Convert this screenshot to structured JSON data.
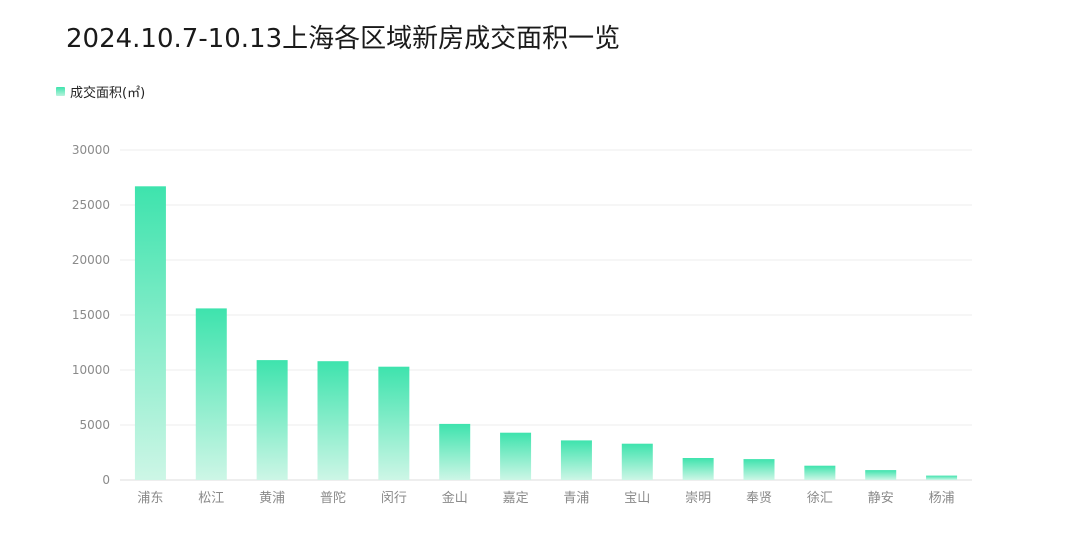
{
  "title": "2024.10.7-10.13上海各区域新房成交面积一览",
  "legend": {
    "label": "成交面积(㎡)"
  },
  "colors": {
    "bar_top": "#3ee3ad",
    "bar_bottom": "#cdf6e6",
    "grid": "#ececec",
    "axis_text": "#8a8a8a"
  },
  "chart_data": {
    "type": "bar",
    "title": "2024.10.7-10.13上海各区域新房成交面积一览",
    "xlabel": "",
    "ylabel": "",
    "ylim": [
      0,
      30000
    ],
    "yticks": [
      0,
      5000,
      10000,
      15000,
      20000,
      25000,
      30000
    ],
    "grid": true,
    "legend_position": "top-left",
    "categories": [
      "浦东",
      "松江",
      "黄浦",
      "普陀",
      "闵行",
      "金山",
      "嘉定",
      "青浦",
      "宝山",
      "崇明",
      "奉贤",
      "徐汇",
      "静安",
      "杨浦"
    ],
    "series": [
      {
        "name": "成交面积(㎡)",
        "values": [
          26700,
          15600,
          10900,
          10800,
          10300,
          5100,
          4300,
          3600,
          3300,
          2000,
          1900,
          1300,
          900,
          400
        ]
      }
    ]
  }
}
